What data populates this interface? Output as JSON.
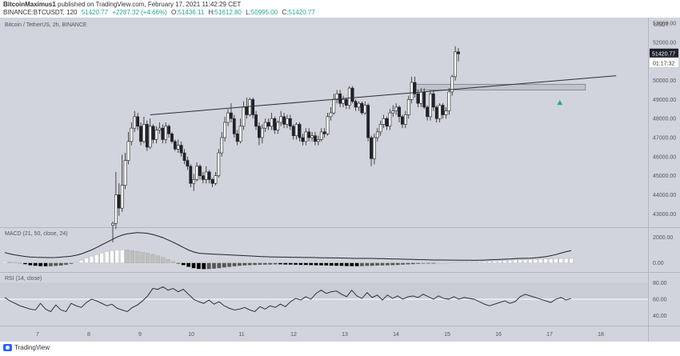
{
  "header": {
    "author": "BitcoinMaximus1",
    "published_text": "published on TradingView.com, February 17, 2021 11:42:29 CET",
    "symbol": "BINANCE:BTCUSDT, 120",
    "last": "51420.77",
    "change": "+2287.32 (+4.66%)",
    "o_label": "O:",
    "o_value": "51436.11",
    "h_label": "H:",
    "h_value": "51612.80",
    "l_label": "L:",
    "l_value": "50995.00",
    "c_label": "C:",
    "c_value": "51420.77"
  },
  "footer": {
    "brand": "TradingView"
  },
  "colors": {
    "panel_bg": "#d1d4dc",
    "up": "#ffffff",
    "down": "#1e222d",
    "wick": "#222222",
    "trendline": "#2a2e39",
    "zone_fill": "#c0c3cb",
    "zone_stroke": "#7b7f87",
    "arrow": "#26a69a",
    "price_tag": "#1e222d",
    "grid": "#c6c9d1"
  },
  "chart_data": [
    {
      "type": "candlestick",
      "title": "Bitcoin / TetherUS, 2h, BINANCE",
      "currency": "USDT",
      "ylim": [
        42300,
        53300
      ],
      "y_ticks": [
        43000,
        44000,
        45000,
        46000,
        47000,
        48000,
        49000,
        50000,
        51000,
        52000,
        53000
      ],
      "y_tick_labels": [
        "43000.00",
        "44000.00",
        "45000.00",
        "46000.00",
        "47000.00",
        "48000.00",
        "49000.00",
        "50000.00",
        "51000.00",
        "52000.00",
        "53000.00"
      ],
      "x_ticks": [
        "7",
        "8",
        "9",
        "10",
        "11",
        "12",
        "13",
        "14",
        "15",
        "16",
        "17",
        "18"
      ],
      "last_price_label": "51420.77",
      "countdown_label": "01:17:32",
      "close": [
        42500,
        44000,
        43300,
        44500,
        45800,
        46800,
        47500,
        48100,
        47600,
        46800,
        47700,
        46500,
        47600,
        46900,
        47400,
        47500,
        46900,
        47600,
        47200,
        46800,
        46400,
        46600,
        46200,
        45800,
        45500,
        44600,
        44800,
        45500,
        45000,
        44800,
        45200,
        44800,
        44600,
        45000,
        46200,
        47000,
        47800,
        48300,
        48000,
        47200,
        46800,
        47600,
        48600,
        48200,
        49000,
        48200,
        47600,
        47000,
        47500,
        47800,
        47600,
        48000,
        47400,
        47800,
        48100,
        47700,
        48000,
        47600,
        47100,
        47700,
        47000,
        46800,
        47300,
        47000,
        47100,
        46800,
        46900,
        47300,
        47200,
        48100,
        48300,
        49000,
        49300,
        48800,
        49000,
        48700,
        49600,
        48900,
        48600,
        48800,
        48300,
        48700,
        47000,
        45900,
        47000,
        47300,
        47700,
        48000,
        47600,
        48300,
        48400,
        48600,
        48100,
        47700,
        48200,
        49000,
        49900,
        49300,
        48800,
        49400,
        48600,
        48100,
        49300,
        48600,
        48000,
        48700,
        48200,
        48400,
        49400,
        50200,
        51500,
        51400
      ],
      "open": [
        42400,
        42500,
        44000,
        43300,
        44500,
        45800,
        46800,
        47500,
        48100,
        47600,
        46800,
        47700,
        46500,
        47600,
        46900,
        47400,
        47500,
        46900,
        47600,
        47200,
        46800,
        46400,
        46600,
        46200,
        45800,
        45500,
        44600,
        44800,
        45500,
        45000,
        44800,
        45200,
        44800,
        44600,
        45000,
        46200,
        47000,
        47800,
        48300,
        48000,
        47200,
        46800,
        47600,
        48600,
        48200,
        49000,
        48200,
        47600,
        47000,
        47500,
        47800,
        47600,
        48000,
        47400,
        47800,
        48100,
        47700,
        48000,
        47600,
        47100,
        47700,
        47000,
        46800,
        47300,
        47000,
        47100,
        46800,
        46900,
        47300,
        47200,
        48100,
        48300,
        49000,
        49300,
        48800,
        49000,
        48700,
        49600,
        48900,
        48600,
        48800,
        48300,
        48700,
        47000,
        45900,
        47000,
        47300,
        47700,
        48000,
        47600,
        48300,
        48400,
        48600,
        48100,
        47700,
        48200,
        49000,
        49900,
        49300,
        48800,
        49400,
        48600,
        48100,
        49300,
        48600,
        48000,
        48700,
        48200,
        48400,
        49400,
        50200,
        51500
      ],
      "high": [
        42600,
        45200,
        44600,
        46100,
        46200,
        47300,
        47800,
        48400,
        48300,
        47800,
        48100,
        47900,
        48000,
        47700,
        47600,
        47800,
        47700,
        47800,
        47700,
        47300,
        46900,
        46900,
        46800,
        46400,
        46000,
        45600,
        45100,
        45700,
        45600,
        45200,
        45500,
        45300,
        44900,
        45200,
        46400,
        47300,
        48100,
        48500,
        48800,
        48200,
        47400,
        48000,
        48900,
        49100,
        49100,
        49100,
        48400,
        47800,
        47700,
        48000,
        48000,
        48300,
        48100,
        47900,
        48400,
        48300,
        48200,
        48200,
        47700,
        47800,
        47800,
        47200,
        47500,
        47500,
        47300,
        47300,
        47100,
        47500,
        47500,
        48300,
        48600,
        49300,
        49500,
        49500,
        49200,
        49100,
        49700,
        49700,
        49000,
        48900,
        48900,
        48900,
        48800,
        47100,
        47200,
        47500,
        47900,
        48200,
        48100,
        48500,
        48700,
        48800,
        48700,
        48200,
        48400,
        49200,
        50200,
        50200,
        49500,
        49600,
        49600,
        48700,
        49500,
        49500,
        48700,
        48800,
        48800,
        48600,
        49600,
        50300,
        51800,
        51700
      ],
      "low": [
        41500,
        42200,
        42900,
        43100,
        44300,
        45600,
        46600,
        47300,
        47400,
        46600,
        46700,
        46300,
        46400,
        46700,
        46700,
        47200,
        46700,
        46700,
        47000,
        46700,
        46300,
        46200,
        46000,
        45600,
        45300,
        44400,
        44200,
        44700,
        44800,
        44600,
        44600,
        44600,
        44400,
        44500,
        44900,
        46000,
        46800,
        47600,
        47800,
        47000,
        46600,
        46700,
        47400,
        48000,
        48100,
        48000,
        47400,
        46600,
        46700,
        47300,
        47400,
        47400,
        47200,
        47200,
        47600,
        47500,
        47500,
        47400,
        46900,
        46900,
        46800,
        46600,
        46600,
        46800,
        46800,
        46600,
        46600,
        46800,
        47000,
        47100,
        47900,
        48200,
        48800,
        48600,
        48600,
        48500,
        48500,
        48800,
        48400,
        48400,
        48200,
        48200,
        46800,
        45500,
        45600,
        46800,
        47100,
        47500,
        47400,
        47400,
        48100,
        48200,
        47800,
        47500,
        47500,
        48000,
        48800,
        49100,
        48600,
        48600,
        48500,
        47900,
        47900,
        48400,
        47800,
        47800,
        48000,
        48000,
        48200,
        49200,
        50000,
        51000
      ],
      "annotations": {
        "trendline": {
          "from": [
            9.2,
            48200
          ],
          "to": [
            18.3,
            50250
          ]
        },
        "resistance_zone": {
          "x0": 14.35,
          "x1": 17.7,
          "y0": 49500,
          "y1": 49800
        },
        "arrow": {
          "x": 17.2,
          "y": 48800
        }
      }
    },
    {
      "type": "line_histogram",
      "title": "MACD (21, 50, close, 24)",
      "ylim": [
        -700,
        2700
      ],
      "y_ticks": [
        0,
        2000
      ],
      "y_tick_labels": [
        "0.00",
        "2000.00"
      ],
      "macd": [
        800,
        700,
        620,
        560,
        500,
        460,
        440,
        430,
        420,
        410,
        420,
        450,
        480,
        520,
        600,
        700,
        850,
        1000,
        1200,
        1400,
        1600,
        1800,
        2000,
        2150,
        2250,
        2300,
        2350,
        2320,
        2280,
        2200,
        2080,
        1950,
        1780,
        1600,
        1400,
        1200,
        1000,
        850,
        750,
        720,
        700,
        680,
        660,
        640,
        620,
        600,
        580,
        560,
        540,
        520,
        500,
        480,
        470,
        460,
        450,
        450,
        440,
        440,
        430,
        420,
        420,
        410,
        400,
        400,
        390,
        390,
        380,
        370,
        360,
        350,
        350,
        350,
        350,
        340,
        330,
        320,
        310,
        300,
        290,
        280,
        270,
        260,
        250,
        240,
        230,
        230,
        230,
        220,
        220,
        210,
        210,
        210,
        200,
        210,
        220,
        240,
        260,
        270,
        290,
        310,
        330,
        350,
        360,
        370,
        400,
        440,
        480,
        560,
        650,
        760,
        870,
        950
      ],
      "histogram": [
        100,
        80,
        50,
        0,
        -100,
        -180,
        -220,
        -250,
        -260,
        -250,
        -230,
        -200,
        -140,
        -60,
        50,
        200,
        380,
        520,
        640,
        760,
        880,
        960,
        1010,
        1020,
        1000,
        960,
        900,
        830,
        750,
        660,
        550,
        420,
        280,
        120,
        -30,
        -170,
        -300,
        -400,
        -460,
        -480,
        -470,
        -440,
        -400,
        -350,
        -300,
        -260,
        -220,
        -190,
        -170,
        -150,
        -140,
        -130,
        -120,
        -110,
        -110,
        -120,
        -130,
        -140,
        -150,
        -160,
        -170,
        -180,
        -190,
        -200,
        -210,
        -220,
        -230,
        -240,
        -250,
        -250,
        -240,
        -230,
        -220,
        -200,
        -190,
        -180,
        -170,
        -150,
        -130,
        -110,
        -90,
        -70,
        -50,
        -30,
        -10,
        10,
        20,
        30,
        40,
        50,
        60,
        70,
        80,
        90,
        110,
        130,
        150,
        170,
        190,
        210,
        230,
        240,
        250,
        260,
        270,
        290,
        300,
        310,
        320,
        330,
        340,
        350
      ],
      "bar_colors": [
        "#ffffff",
        "#bfbfbf",
        "#000000",
        "#555555"
      ]
    },
    {
      "type": "line",
      "title": "RSI (14, close)",
      "ylim": [
        28,
        92
      ],
      "y_ticks": [
        40,
        60,
        80
      ],
      "y_tick_labels": [
        "40.00",
        "60.00",
        "80.00"
      ],
      "values": [
        62,
        58,
        55,
        52,
        50,
        48,
        47,
        55,
        48,
        45,
        53,
        47,
        45,
        55,
        52,
        50,
        56,
        60,
        58,
        55,
        52,
        54,
        49,
        47,
        45,
        50,
        53,
        58,
        64,
        73,
        72,
        75,
        71,
        73,
        69,
        72,
        66,
        60,
        57,
        55,
        59,
        54,
        57,
        52,
        49,
        47,
        48,
        50,
        47,
        45,
        51,
        48,
        52,
        50,
        54,
        51,
        57,
        61,
        59,
        63,
        60,
        67,
        71,
        67,
        69,
        70,
        66,
        63,
        71,
        64,
        61,
        68,
        62,
        65,
        59,
        65,
        61,
        64,
        60,
        63,
        64,
        62,
        66,
        63,
        60,
        64,
        61,
        60,
        63,
        60,
        62,
        61,
        60,
        57,
        54,
        52,
        54,
        56,
        58,
        55,
        57,
        63,
        66,
        64,
        62,
        60,
        58,
        56,
        60,
        62,
        59,
        61
      ]
    }
  ]
}
